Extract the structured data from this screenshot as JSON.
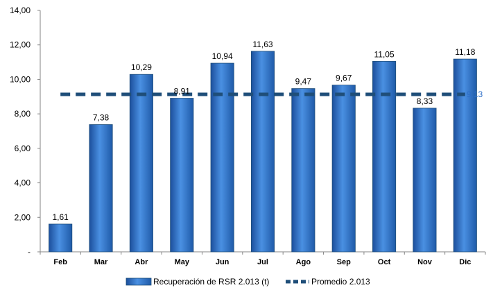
{
  "chart_data": {
    "type": "bar",
    "categories": [
      "Feb",
      "Mar",
      "Abr",
      "May",
      "Jun",
      "Jul",
      "Ago",
      "Sep",
      "Oct",
      "Nov",
      "Dic"
    ],
    "series": [
      {
        "name": "Recuperación de RSR 2.013 (t)",
        "type": "bar",
        "values": [
          1.61,
          7.38,
          10.29,
          8.91,
          10.94,
          11.63,
          9.47,
          9.67,
          11.05,
          8.33,
          11.18
        ],
        "labels": [
          "1,61",
          "7,38",
          "10,29",
          "8,91",
          "10,94",
          "11,63",
          "9,47",
          "9,67",
          "11,05",
          "8,33",
          "11,18"
        ],
        "color": "#2e6fc8"
      },
      {
        "name": "Promedio 2.013",
        "type": "line",
        "style": "dashed",
        "value": 9.13,
        "label": "9,13",
        "color": "#1f4e79"
      }
    ],
    "title": "",
    "xlabel": "",
    "ylabel": "",
    "ylim": [
      0,
      14
    ],
    "yticks": [
      {
        "value": 0,
        "label": "-"
      },
      {
        "value": 2,
        "label": "2,00"
      },
      {
        "value": 4,
        "label": "4,00"
      },
      {
        "value": 6,
        "label": "6,00"
      },
      {
        "value": 8,
        "label": "8,00"
      },
      {
        "value": 10,
        "label": "10,00"
      },
      {
        "value": 12,
        "label": "12,00"
      },
      {
        "value": 14,
        "label": "14,00"
      }
    ],
    "grid": false,
    "legend": "bottom"
  }
}
